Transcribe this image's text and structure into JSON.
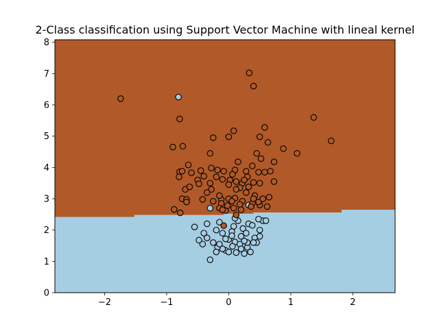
{
  "chart_data": {
    "type": "scatter",
    "title": "2-Class classification using Support Vector Machine with lineal kernel",
    "xlabel": "",
    "ylabel": "",
    "xlim": [
      -2.8,
      2.68
    ],
    "ylim": [
      0,
      8.08
    ],
    "grid": false,
    "x_ticks": [
      -2,
      -1,
      0,
      1,
      2
    ],
    "x_tick_labels": [
      "−2",
      "−1",
      "0",
      "1",
      "2"
    ],
    "y_ticks": [
      0,
      1,
      2,
      3,
      4,
      5,
      6,
      7,
      8
    ],
    "y_tick_labels": [
      "0",
      "1",
      "2",
      "3",
      "4",
      "5",
      "6",
      "7",
      "8"
    ],
    "region_colors": {
      "upper": "#b15928",
      "lower": "#a6cee3"
    },
    "point_colors": {
      "class_0": "#a6cee3",
      "class_1": "#b15928",
      "edge": "#000000"
    },
    "decision_boundary": [
      [
        -2.8,
        2.42
      ],
      [
        -1.52,
        2.42
      ],
      [
        -1.52,
        2.48
      ],
      [
        -0.08,
        2.48
      ],
      [
        -0.08,
        2.52
      ],
      [
        0.4,
        2.52
      ],
      [
        0.4,
        2.56
      ],
      [
        1.82,
        2.56
      ],
      [
        1.82,
        2.65
      ],
      [
        2.68,
        2.65
      ]
    ],
    "series": [
      {
        "points": [
          [
            -0.81,
            6.25
          ],
          [
            -0.3,
            2.7
          ],
          [
            0.32,
            2.8
          ],
          [
            0.08,
            2.12
          ],
          [
            0.23,
            2.05
          ],
          [
            0.2,
            1.8
          ],
          [
            0.32,
            2.2
          ],
          [
            -0.1,
            1.9
          ],
          [
            -0.2,
            2.0
          ],
          [
            0.42,
            1.75
          ],
          [
            0.1,
            1.62
          ],
          [
            0.06,
            1.48
          ],
          [
            -0.05,
            1.35
          ],
          [
            0.3,
            1.45
          ],
          [
            -0.25,
            1.6
          ],
          [
            0.5,
            1.8
          ],
          [
            -0.35,
            1.75
          ],
          [
            0.15,
            2.3
          ],
          [
            -0.15,
            2.25
          ],
          [
            -0.42,
            1.55
          ],
          [
            0.35,
            1.3
          ],
          [
            0.0,
            1.7
          ],
          [
            -0.3,
            1.05
          ],
          [
            0.05,
            1.95
          ],
          [
            0.25,
            1.25
          ],
          [
            -0.1,
            1.4
          ],
          [
            0.18,
            1.55
          ],
          [
            0.45,
            1.6
          ],
          [
            -0.4,
            1.9
          ],
          [
            0.28,
            1.9
          ],
          [
            0.55,
            2.3
          ],
          [
            0.0,
            1.3
          ],
          [
            0.12,
            1.28
          ],
          [
            -0.18,
            1.45
          ],
          [
            0.38,
            2.15
          ],
          [
            -0.35,
            2.2
          ],
          [
            0.6,
            2.3
          ],
          [
            -0.05,
            1.72
          ],
          [
            0.1,
            2.38
          ],
          [
            -0.48,
            1.68
          ],
          [
            0.4,
            1.6
          ],
          [
            0.2,
            1.4
          ],
          [
            0.3,
            1.6
          ],
          [
            -0.2,
            1.3
          ],
          [
            0.48,
            2.35
          ],
          [
            -0.55,
            2.1
          ],
          [
            0.05,
            1.82
          ],
          [
            0.25,
            1.65
          ],
          [
            -0.15,
            1.55
          ],
          [
            0.5,
            2.0
          ]
        ]
      },
      {
        "points": [
          [
            -1.74,
            6.2
          ],
          [
            0.33,
            7.02
          ],
          [
            0.4,
            6.6
          ],
          [
            1.37,
            5.6
          ],
          [
            1.65,
            4.85
          ],
          [
            -0.79,
            5.55
          ],
          [
            0.58,
            5.28
          ],
          [
            0.08,
            5.17
          ],
          [
            0.5,
            4.98
          ],
          [
            -0.25,
            4.95
          ],
          [
            0.0,
            4.98
          ],
          [
            0.63,
            4.8
          ],
          [
            -0.9,
            4.65
          ],
          [
            -0.74,
            4.68
          ],
          [
            0.88,
            4.6
          ],
          [
            1.1,
            4.45
          ],
          [
            -0.3,
            4.45
          ],
          [
            0.45,
            4.45
          ],
          [
            0.52,
            4.28
          ],
          [
            0.73,
            4.18
          ],
          [
            0.15,
            4.18
          ],
          [
            -0.65,
            4.08
          ],
          [
            0.38,
            4.05
          ],
          [
            -0.79,
            3.86
          ],
          [
            -0.75,
            3.88
          ],
          [
            -0.6,
            3.83
          ],
          [
            -0.45,
            3.9
          ],
          [
            -0.28,
            3.98
          ],
          [
            -0.18,
            3.92
          ],
          [
            -0.08,
            3.88
          ],
          [
            0.1,
            3.92
          ],
          [
            0.28,
            3.88
          ],
          [
            0.48,
            3.85
          ],
          [
            0.58,
            3.85
          ],
          [
            0.67,
            3.88
          ],
          [
            -0.8,
            3.7
          ],
          [
            -0.2,
            3.7
          ],
          [
            -0.1,
            3.62
          ],
          [
            0.02,
            3.6
          ],
          [
            0.12,
            3.55
          ],
          [
            0.22,
            3.5
          ],
          [
            0.3,
            3.7
          ],
          [
            0.4,
            3.52
          ],
          [
            0.5,
            3.5
          ],
          [
            0.73,
            3.55
          ],
          [
            -0.5,
            3.6
          ],
          [
            -0.3,
            3.5
          ],
          [
            0.18,
            3.35
          ],
          [
            -0.7,
            3.3
          ],
          [
            -0.63,
            3.38
          ],
          [
            -0.48,
            3.48
          ],
          [
            -0.28,
            3.3
          ],
          [
            0.0,
            3.45
          ],
          [
            0.12,
            3.3
          ],
          [
            0.28,
            3.2
          ],
          [
            0.42,
            3.1
          ],
          [
            -0.75,
            3.0
          ],
          [
            -0.68,
            2.98
          ],
          [
            -0.42,
            2.98
          ],
          [
            -0.25,
            2.92
          ],
          [
            -0.12,
            2.98
          ],
          [
            0.0,
            3.0
          ],
          [
            0.1,
            3.02
          ],
          [
            0.22,
            2.92
          ],
          [
            0.38,
            2.85
          ],
          [
            0.5,
            2.8
          ],
          [
            0.62,
            2.75
          ],
          [
            -0.68,
            2.9
          ],
          [
            -0.12,
            2.85
          ],
          [
            0.05,
            2.92
          ],
          [
            0.18,
            2.82
          ],
          [
            -0.88,
            2.66
          ],
          [
            -0.78,
            2.55
          ],
          [
            -0.15,
            2.7
          ],
          [
            -0.05,
            2.62
          ],
          [
            0.2,
            2.65
          ],
          [
            0.12,
            2.48
          ],
          [
            0.65,
            3.05
          ],
          [
            -0.02,
            2.78
          ],
          [
            0.32,
            3.38
          ],
          [
            0.4,
            3.0
          ],
          [
            -0.1,
            2.65
          ],
          [
            0.48,
            2.9
          ],
          [
            -0.35,
            3.2
          ],
          [
            0.25,
            3.6
          ],
          [
            -0.4,
            3.72
          ],
          [
            0.06,
            3.78
          ],
          [
            0.36,
            2.75
          ],
          [
            0.55,
            3.0
          ],
          [
            -0.15,
            3.1
          ],
          [
            0.08,
            2.7
          ],
          [
            -0.08,
            2.14
          ]
        ]
      }
    ]
  }
}
